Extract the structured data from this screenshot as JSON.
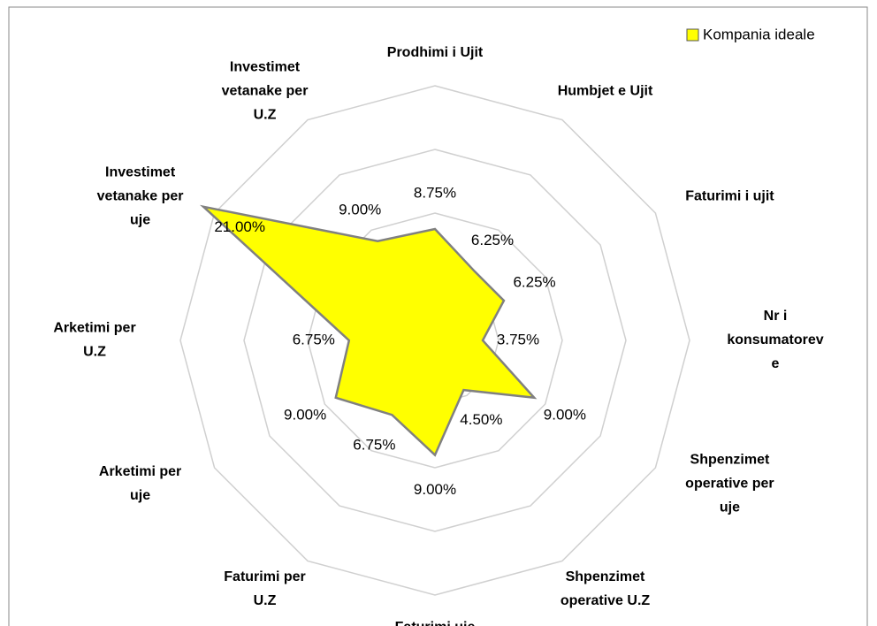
{
  "chart_data": {
    "type": "radar",
    "categories": [
      [
        "Prodhimi i Ujit"
      ],
      [
        "Humbjet e Ujit"
      ],
      [
        "Faturimi i ujit"
      ],
      [
        "Nr i",
        "konsumatorev",
        "e"
      ],
      [
        "Shpenzimet",
        "operative per",
        "uje"
      ],
      [
        "Shpenzimet",
        "operative U.Z"
      ],
      [
        "Faturimi uje"
      ],
      [
        "Faturimi per",
        "U.Z"
      ],
      [
        "Arketimi per",
        "uje"
      ],
      [
        "Arketimi per",
        "U.Z"
      ],
      [
        "Investimet",
        "vetanake per",
        "uje"
      ],
      [
        "Investimet",
        "vetanake per",
        "U.Z"
      ]
    ],
    "series": [
      {
        "name": "Kompania ideale",
        "color": "#ffff00",
        "values": [
          8.75,
          6.25,
          6.25,
          3.75,
          9.0,
          4.5,
          9.0,
          6.75,
          9.0,
          6.75,
          21.0,
          9.0
        ],
        "value_labels": [
          "8.75%",
          "6.25%",
          "6.25%",
          "3.75%",
          "9.00%",
          "4.50%",
          "9.00%",
          "6.75%",
          "9.00%",
          "6.75%",
          "21.00%",
          "9.00%"
        ]
      }
    ],
    "ylim": [
      0,
      20
    ],
    "yticks": [
      0,
      5,
      10,
      15,
      20
    ],
    "grid": true,
    "legend": "top-right"
  }
}
